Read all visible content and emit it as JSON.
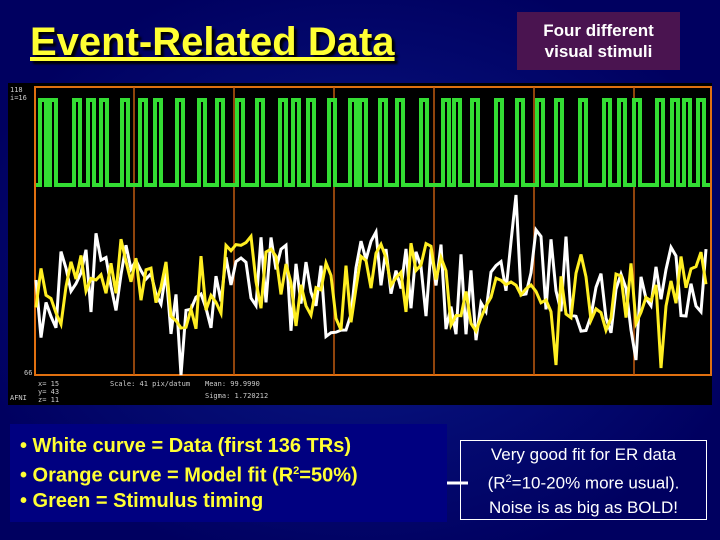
{
  "header": {
    "title": "Event-Related Data",
    "callout": [
      "Four different",
      "visual stimuli"
    ]
  },
  "plot": {
    "axis_labels": [
      "118",
      "i=16",
      "66"
    ],
    "status": [
      "x= 15",
      "y= 43",
      "z= 11",
      "Scale: 41 pix/datum",
      "Mean: 99.9990",
      "Sigma: 1.720212",
      "AFNI"
    ]
  },
  "bullets": [
    [
      "• White curve = Data (first 136 TRs)"
    ],
    [
      "• Orange curve = Model fit (R",
      "2",
      "=50%)"
    ],
    [
      "• Green = Stimulus timing"
    ]
  ],
  "note": [
    [
      "Very good fit  for ER data"
    ],
    [
      "(R",
      "2",
      "=10-20% more usual)."
    ],
    [
      "Noise is as big as BOLD!"
    ]
  ]
}
